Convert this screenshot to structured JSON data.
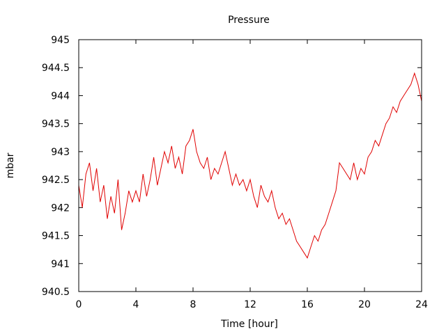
{
  "chart_data": {
    "type": "line",
    "title": "Pressure",
    "xlabel": "Time [hour]",
    "ylabel": "mbar",
    "xlim": [
      0,
      24
    ],
    "ylim": [
      940.5,
      945
    ],
    "xticks": [
      0,
      4,
      8,
      12,
      16,
      20,
      24
    ],
    "xtick_labels": [
      "0",
      "4",
      "8",
      "12",
      "16",
      "20",
      "24"
    ],
    "yticks": [
      940.5,
      941,
      941.5,
      942,
      942.5,
      943,
      943.5,
      944,
      944.5,
      945
    ],
    "ytick_labels": [
      "940.5",
      "941",
      "941.5",
      "942",
      "942.5",
      "943",
      "943.5",
      "944",
      "944.5",
      "945"
    ],
    "grid": false,
    "legend": "none",
    "series": [
      {
        "color": "#e00000",
        "x": [
          0.0,
          0.25,
          0.5,
          0.75,
          1.0,
          1.25,
          1.5,
          1.75,
          2.0,
          2.25,
          2.5,
          2.75,
          3.0,
          3.25,
          3.5,
          3.75,
          4.0,
          4.25,
          4.5,
          4.75,
          5.0,
          5.25,
          5.5,
          5.75,
          6.0,
          6.25,
          6.5,
          6.75,
          7.0,
          7.25,
          7.5,
          7.75,
          8.0,
          8.25,
          8.5,
          8.75,
          9.0,
          9.25,
          9.5,
          9.75,
          10.0,
          10.25,
          10.5,
          10.75,
          11.0,
          11.25,
          11.5,
          11.75,
          12.0,
          12.25,
          12.5,
          12.75,
          13.0,
          13.25,
          13.5,
          13.75,
          14.0,
          14.25,
          14.5,
          14.75,
          15.0,
          15.25,
          15.5,
          15.75,
          16.0,
          16.25,
          16.5,
          16.75,
          17.0,
          17.25,
          17.5,
          17.75,
          18.0,
          18.25,
          18.5,
          18.75,
          19.0,
          19.25,
          19.5,
          19.75,
          20.0,
          20.25,
          20.5,
          20.75,
          21.0,
          21.25,
          21.5,
          21.75,
          22.0,
          22.25,
          22.5,
          22.75,
          23.0,
          23.25,
          23.5,
          23.75,
          24.0
        ],
        "y": [
          942.4,
          942.0,
          942.6,
          942.8,
          942.3,
          942.7,
          942.1,
          942.4,
          941.8,
          942.2,
          941.9,
          942.5,
          941.6,
          941.9,
          942.3,
          942.1,
          942.3,
          942.1,
          942.6,
          942.2,
          942.5,
          942.9,
          942.4,
          942.7,
          943.0,
          942.8,
          943.1,
          942.7,
          942.9,
          942.6,
          943.1,
          943.2,
          943.4,
          943.0,
          942.8,
          942.7,
          942.9,
          942.5,
          942.7,
          942.6,
          942.8,
          943.0,
          942.7,
          942.4,
          942.6,
          942.4,
          942.5,
          942.3,
          942.5,
          942.2,
          942.0,
          942.4,
          942.2,
          942.1,
          942.3,
          942.0,
          941.8,
          941.9,
          941.7,
          941.8,
          941.6,
          941.4,
          941.3,
          941.2,
          941.1,
          941.3,
          941.5,
          941.4,
          941.6,
          941.7,
          941.9,
          942.1,
          942.3,
          942.8,
          942.7,
          942.6,
          942.5,
          942.8,
          942.5,
          942.7,
          942.6,
          942.9,
          943.0,
          943.2,
          943.1,
          943.3,
          943.5,
          943.6,
          943.8,
          943.7,
          943.9,
          944.0,
          944.1,
          944.2,
          944.4,
          944.2,
          943.9
        ]
      }
    ]
  }
}
